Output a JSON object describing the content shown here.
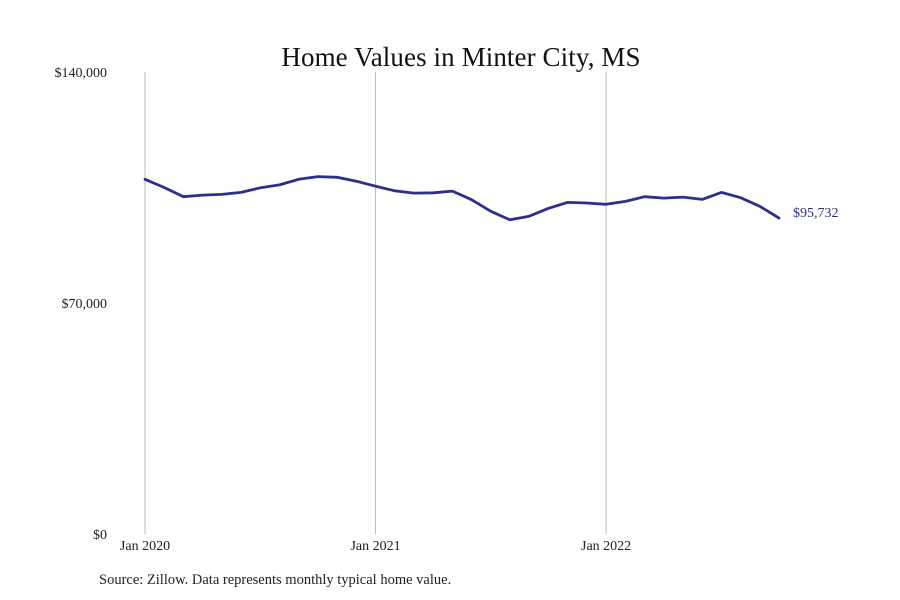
{
  "chart_data": {
    "type": "line",
    "title": "Home Values in Minter City, MS",
    "xlabel": "",
    "ylabel": "",
    "source": "Source: Zillow. Data represents monthly typical home value.",
    "ylim": [
      0,
      140000
    ],
    "y_ticks": [
      {
        "value": 0,
        "label": "$0"
      },
      {
        "value": 70000,
        "label": "$70,000"
      },
      {
        "value": 140000,
        "label": "$140,000"
      }
    ],
    "x_start": "2020-01",
    "x_end": "2022-10",
    "x_ticks": [
      {
        "date": "2020-01",
        "label": "Jan 2020"
      },
      {
        "date": "2021-01",
        "label": "Jan 2021"
      },
      {
        "date": "2022-01",
        "label": "Jan 2022"
      }
    ],
    "grid": "vertical lines at x ticks",
    "series": [
      {
        "color": "#2e2e8f",
        "end_label": "$95,732",
        "points": [
          {
            "date": "2020-01",
            "value": 107500
          },
          {
            "date": "2020-02",
            "value": 105000
          },
          {
            "date": "2020-03",
            "value": 102200
          },
          {
            "date": "2020-04",
            "value": 102700
          },
          {
            "date": "2020-05",
            "value": 102900
          },
          {
            "date": "2020-06",
            "value": 103500
          },
          {
            "date": "2020-07",
            "value": 104900
          },
          {
            "date": "2020-08",
            "value": 105800
          },
          {
            "date": "2020-09",
            "value": 107500
          },
          {
            "date": "2020-10",
            "value": 108300
          },
          {
            "date": "2020-11",
            "value": 108100
          },
          {
            "date": "2020-12",
            "value": 106900
          },
          {
            "date": "2021-01",
            "value": 105400
          },
          {
            "date": "2021-02",
            "value": 104000
          },
          {
            "date": "2021-03",
            "value": 103300
          },
          {
            "date": "2021-04",
            "value": 103400
          },
          {
            "date": "2021-05",
            "value": 103900
          },
          {
            "date": "2021-06",
            "value": 101300
          },
          {
            "date": "2021-07",
            "value": 97800
          },
          {
            "date": "2021-08",
            "value": 95200
          },
          {
            "date": "2021-09",
            "value": 96300
          },
          {
            "date": "2021-10",
            "value": 98700
          },
          {
            "date": "2021-11",
            "value": 100500
          },
          {
            "date": "2021-12",
            "value": 100300
          },
          {
            "date": "2022-01",
            "value": 99900
          },
          {
            "date": "2022-02",
            "value": 100800
          },
          {
            "date": "2022-03",
            "value": 102200
          },
          {
            "date": "2022-04",
            "value": 101800
          },
          {
            "date": "2022-05",
            "value": 102100
          },
          {
            "date": "2022-06",
            "value": 101400
          },
          {
            "date": "2022-07",
            "value": 103500
          },
          {
            "date": "2022-08",
            "value": 101900
          },
          {
            "date": "2022-09",
            "value": 99300
          },
          {
            "date": "2022-10",
            "value": 95732
          }
        ]
      }
    ]
  }
}
